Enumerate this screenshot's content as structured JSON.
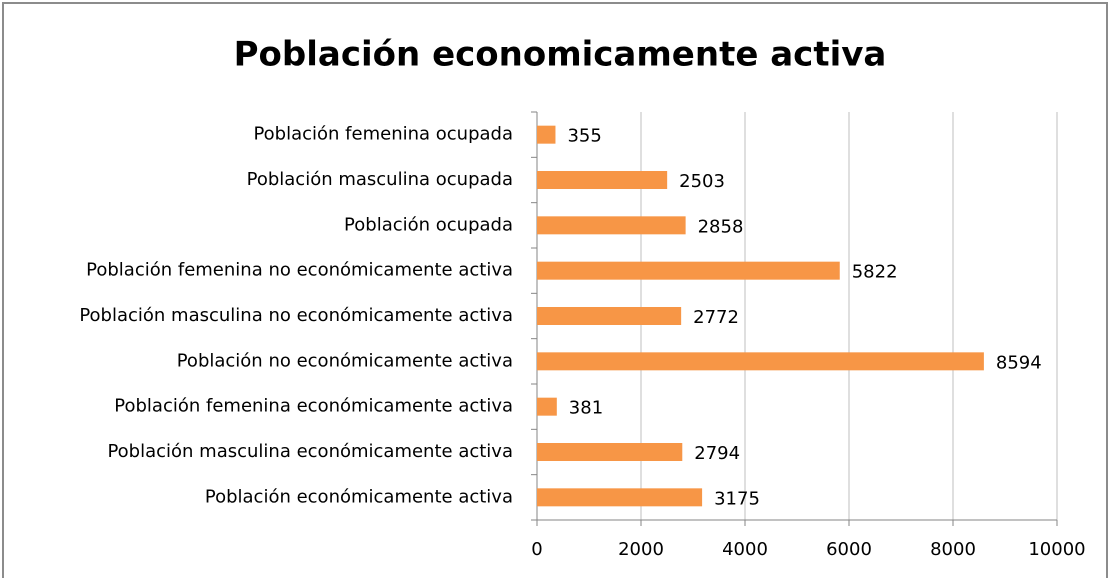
{
  "chart_data": {
    "type": "bar",
    "orientation": "horizontal",
    "title": "Población economicamente activa",
    "categories": [
      "Población femenina ocupada",
      "Población masculina ocupada",
      "Población ocupada",
      "Población femenina no económicamente activa",
      "Población masculina no económicamente activa",
      "Población no económicamente activa",
      "Población femenina económicamente activa",
      "Población masculina económicamente activa",
      "Población económicamente activa"
    ],
    "values": [
      355,
      2503,
      2858,
      5822,
      2772,
      8594,
      381,
      2794,
      3175
    ],
    "color": "#f79646",
    "xlim": [
      0,
      10000
    ],
    "xticks": [
      0,
      2000,
      4000,
      6000,
      8000,
      10000
    ],
    "grid": true
  }
}
